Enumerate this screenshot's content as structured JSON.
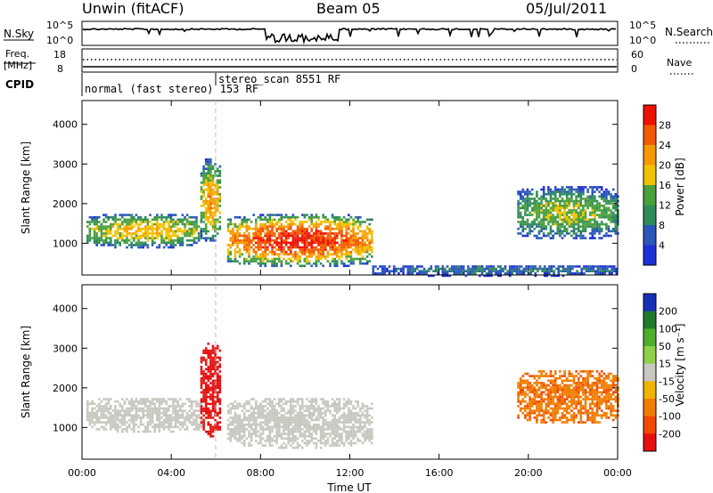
{
  "header": {
    "station": "Unwin (fitACF)",
    "beam": "Beam 05",
    "date": "05/Jul/2011"
  },
  "strip_nsky": {
    "left_label": "N.Sky",
    "right_label": "N.Search",
    "left_ticks": [
      "10^5",
      "10^0"
    ],
    "right_ticks": [
      "10^5",
      "10^0"
    ]
  },
  "strip_freq": {
    "left_label_line1": "Freq.",
    "left_label_line2": "[MHz]",
    "right_label": "Nave",
    "left_ticks": [
      "18",
      "8"
    ],
    "right_ticks": [
      "60",
      "0"
    ]
  },
  "cpid": {
    "label": "CPID",
    "modes": [
      {
        "name": "normal (fast stereo) 153 RF",
        "start_hour": 0.0
      },
      {
        "name": "stereo_scan 8551 RF",
        "start_hour": 6.0
      }
    ]
  },
  "colors": {
    "power": [
      "#1f2fd6",
      "#2a57b8",
      "#2f8c5a",
      "#4aa03a",
      "#f2c200",
      "#f59a00",
      "#f25a00",
      "#ee1000"
    ],
    "velocity": [
      "#1a2fb8",
      "#1f7a2e",
      "#4fae2e",
      "#8fd04a",
      "#c8c8c0",
      "#f0b400",
      "#f07d00",
      "#f24800",
      "#e51010"
    ]
  },
  "chart_data": [
    {
      "type": "heatmap",
      "quantity": "power",
      "ylabel": "Slant Range [km]",
      "yticks": [
        1000,
        2000,
        3000,
        4000
      ],
      "ylim": [
        200,
        4600
      ],
      "xlim": [
        0,
        24
      ],
      "colorbar": {
        "label": "Power [dB]",
        "ticks": [
          "4",
          "8",
          "12",
          "16",
          "20",
          "24",
          "28"
        ],
        "range": [
          0,
          32
        ]
      },
      "features": [
        {
          "start_hour": 0.2,
          "end_hour": 5.3,
          "range_low": 900,
          "range_high": 1800,
          "peak": 20
        },
        {
          "start_hour": 5.3,
          "end_hour": 6.2,
          "range_low": 1000,
          "range_high": 3200,
          "peak": 22
        },
        {
          "start_hour": 6.5,
          "end_hour": 13.0,
          "range_low": 400,
          "range_high": 1800,
          "peak": 30
        },
        {
          "start_hour": 13.0,
          "end_hour": 24.0,
          "range_low": 200,
          "range_high": 500,
          "peak": 8
        },
        {
          "start_hour": 19.5,
          "end_hour": 24.0,
          "range_low": 1100,
          "range_high": 2500,
          "peak": 16
        }
      ]
    },
    {
      "type": "heatmap",
      "quantity": "velocity",
      "ylabel": "Slant Range [km]",
      "yticks": [
        1000,
        2000,
        3000,
        4000
      ],
      "ylim": [
        200,
        4600
      ],
      "xlim": [
        0,
        24
      ],
      "xlabel": "Time UT",
      "xticks": [
        "00:00",
        "04:00",
        "08:00",
        "12:00",
        "16:00",
        "20:00",
        "00:00"
      ],
      "colorbar": {
        "label": "Velocity [m s⁻¹]",
        "ticks": [
          "200",
          "100",
          "50",
          "15",
          "-15",
          "-50",
          "-100",
          "-200"
        ],
        "range": [
          -250,
          250
        ]
      },
      "features": [
        {
          "start_hour": 0.2,
          "end_hour": 5.3,
          "range_low": 900,
          "range_high": 1800,
          "velocity": 0
        },
        {
          "start_hour": 5.3,
          "end_hour": 6.2,
          "range_low": 800,
          "range_high": 3200,
          "velocity": -200
        },
        {
          "start_hour": 6.5,
          "end_hour": 13.0,
          "range_low": 500,
          "range_high": 1800,
          "velocity": 0
        },
        {
          "start_hour": 19.5,
          "end_hour": 24.0,
          "range_low": 1100,
          "range_high": 2500,
          "velocity": -40
        }
      ]
    }
  ]
}
